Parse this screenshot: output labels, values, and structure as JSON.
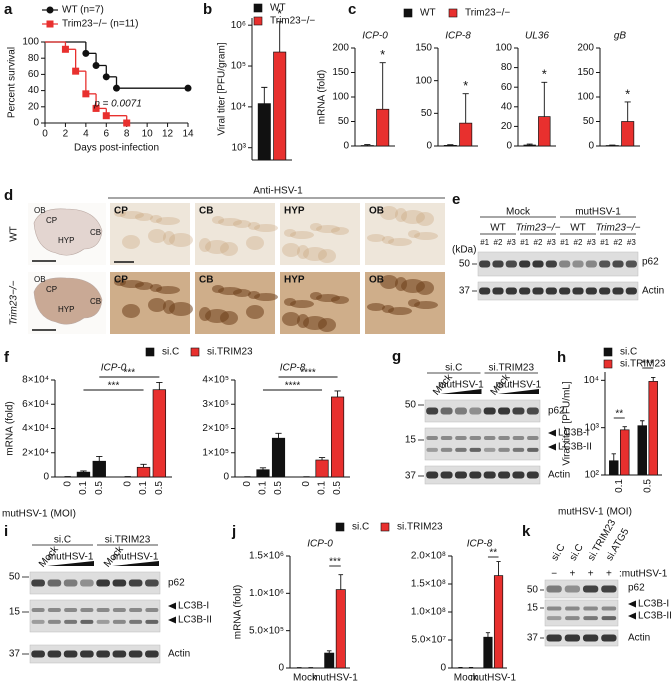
{
  "chart_data": [
    {
      "panel": "a",
      "type": "line",
      "ylabel": "Percent survival",
      "xlabel": "Days post-infection",
      "annotation": "p = 0.0071",
      "xlim": [
        0,
        14
      ],
      "xticks": [
        0,
        2,
        4,
        6,
        8,
        10,
        12,
        14
      ],
      "ylim": [
        0,
        100
      ],
      "yticks": [
        0,
        20,
        40,
        60,
        80,
        100
      ],
      "series": [
        {
          "name": "WT (n=7)",
          "color": "#111111",
          "marker": "circle",
          "x": [
            0,
            4,
            5,
            6,
            7,
            14
          ],
          "values": [
            100,
            86,
            71,
            57,
            43,
            43
          ]
        },
        {
          "name": "Trim23−/− (n=11)",
          "color": "#e8302e",
          "marker": "square",
          "x": [
            0,
            2,
            3,
            4,
            5,
            6,
            8
          ],
          "values": [
            100,
            91,
            64,
            36,
            18,
            9,
            0
          ]
        }
      ]
    },
    {
      "panel": "b",
      "type": "bar",
      "ylabel": "Viral titer [PFU/gram]",
      "log": true,
      "ylim": [
        500,
        1500000
      ],
      "yticks": [
        {
          "value": 1000,
          "label": "10³"
        },
        {
          "value": 10000,
          "label": "10⁴"
        },
        {
          "value": 100000,
          "label": "10⁵"
        },
        {
          "value": 1000000,
          "label": "10⁶"
        }
      ],
      "series": [
        {
          "name": "WT",
          "color": "#111111",
          "values": [
            12000
          ],
          "errors": [
            18000
          ]
        },
        {
          "name": "Trim23−/−",
          "color": "#e8302e",
          "values": [
            220000
          ],
          "errors": [
            1000000
          ]
        }
      ],
      "annotations": [
        "*"
      ]
    },
    {
      "panel": "c",
      "type": "bar",
      "title": "ICP-0",
      "ylabel": "mRNA (fold)",
      "ylim": [
        0,
        200
      ],
      "yticks": [
        0,
        50,
        100,
        150,
        200
      ],
      "series": [
        {
          "name": "WT",
          "color": "#111111",
          "values": [
            1
          ],
          "errors": [
            2
          ]
        },
        {
          "name": "Trim23−/−",
          "color": "#e8302e",
          "values": [
            75
          ],
          "errors": [
            95
          ]
        }
      ],
      "annotations": [
        "*"
      ]
    },
    {
      "type": "bar",
      "title": "ICP-8",
      "ylim": [
        0,
        150
      ],
      "yticks": [
        0,
        50,
        100,
        150
      ],
      "series": [
        {
          "color": "#111111",
          "values": [
            1
          ],
          "errors": [
            1
          ]
        },
        {
          "color": "#e8302e",
          "values": [
            35
          ],
          "errors": [
            45
          ]
        }
      ],
      "annotations": [
        "*"
      ]
    },
    {
      "type": "bar",
      "title": "UL36",
      "ylim": [
        0,
        100
      ],
      "yticks": [
        0,
        20,
        40,
        60,
        80,
        100
      ],
      "series": [
        {
          "color": "#111111",
          "values": [
            1
          ],
          "errors": [
            1
          ]
        },
        {
          "color": "#e8302e",
          "values": [
            30
          ],
          "errors": [
            35
          ]
        }
      ],
      "annotations": [
        "*"
      ]
    },
    {
      "type": "bar",
      "title": "gB",
      "ylim": [
        0,
        200
      ],
      "yticks": [
        0,
        50,
        100,
        150,
        200
      ],
      "series": [
        {
          "color": "#111111",
          "values": [
            1
          ],
          "errors": [
            1
          ]
        },
        {
          "color": "#e8302e",
          "values": [
            50
          ],
          "errors": [
            40
          ]
        }
      ],
      "annotations": [
        "*"
      ]
    },
    {
      "panel": "f",
      "type": "bar",
      "title": "ICP-0",
      "ylabel": "mRNA (fold)",
      "xlabel": "mutHSV-1 (MOI)",
      "categories": [
        "0",
        "0.1",
        "0.5"
      ],
      "ylim": [
        0,
        80000
      ],
      "yticks": [
        0,
        {
          "value": 20000,
          "label": "2×10⁴"
        },
        {
          "value": 40000,
          "label": "4×10⁴"
        },
        {
          "value": 60000,
          "label": "6×10⁴"
        },
        {
          "value": 80000,
          "label": "8×10⁴"
        }
      ],
      "series": [
        {
          "name": "si.C",
          "color": "#111111",
          "values": [
            0,
            4000,
            13000
          ],
          "errors": [
            300,
            1000,
            4000
          ]
        },
        {
          "name": "si.TRIM23",
          "color": "#e8302e",
          "values": [
            0,
            8000,
            72000
          ],
          "errors": [
            300,
            2500,
            6000
          ]
        }
      ],
      "annotations": [
        "***",
        "***"
      ]
    },
    {
      "type": "bar",
      "title": "ICP-8",
      "categories": [
        "0",
        "0.1",
        "0.5"
      ],
      "ylim": [
        0,
        400000
      ],
      "yticks": [
        0,
        {
          "value": 100000,
          "label": "1×10⁵"
        },
        {
          "value": 200000,
          "label": "2×10⁵"
        },
        {
          "value": 300000,
          "label": "3×10⁵"
        },
        {
          "value": 400000,
          "label": "4×10⁵"
        }
      ],
      "series": [
        {
          "color": "#111111",
          "values": [
            0,
            30000,
            160000
          ],
          "errors": [
            1000,
            8000,
            20000
          ]
        },
        {
          "color": "#e8302e",
          "values": [
            0,
            70000,
            330000
          ],
          "errors": [
            1000,
            10000,
            25000
          ]
        }
      ],
      "annotations": [
        "****",
        "****"
      ]
    },
    {
      "panel": "h",
      "type": "bar",
      "ylabel": "Viral titer [PFU/mL]",
      "xlabel": "mutHSV-1 (MOI)",
      "log": true,
      "categories": [
        "0.1",
        "0.5"
      ],
      "ylim": [
        100,
        15000
      ],
      "yticks": [
        {
          "value": 100,
          "label": "10²"
        },
        {
          "value": 1000,
          "label": "10³"
        },
        {
          "value": 10000,
          "label": "10⁴"
        }
      ],
      "series": [
        {
          "name": "si.C",
          "color": "#111111",
          "values": [
            200,
            1100
          ],
          "errors": [
            80,
            300
          ]
        },
        {
          "name": "si.TRIM23",
          "color": "#e8302e",
          "values": [
            900,
            9500
          ],
          "errors": [
            150,
            2000
          ]
        }
      ],
      "annotations": [
        "**",
        "***"
      ]
    },
    {
      "panel": "j",
      "type": "bar",
      "title": "ICP-0",
      "ylabel": "mRNA (fold)",
      "categories": [
        "Mock",
        "mutHSV-1"
      ],
      "ylim": [
        0,
        1500000
      ],
      "yticks": [
        0,
        {
          "value": 500000,
          "label": "5.0×10⁵"
        },
        {
          "value": 1000000,
          "label": "1.0×10⁶"
        },
        {
          "value": 1500000,
          "label": "1.5×10⁶"
        }
      ],
      "series": [
        {
          "name": "si.C",
          "color": "#111111",
          "values": [
            0,
            200000
          ],
          "errors": [
            5000,
            30000
          ]
        },
        {
          "name": "si.TRIM23",
          "color": "#e8302e",
          "values": [
            0,
            1050000
          ],
          "errors": [
            5000,
            200000
          ]
        }
      ],
      "annotations": [
        "***"
      ]
    },
    {
      "type": "bar",
      "title": "ICP-8",
      "categories": [
        "Mock",
        "mutHSV-1"
      ],
      "ylim": [
        0,
        200000000
      ],
      "yticks": [
        0,
        {
          "value": 50000000,
          "label": "5.0×10⁷"
        },
        {
          "value": 100000000,
          "label": "1.0×10⁸"
        },
        {
          "value": 150000000,
          "label": "1.5×10⁸"
        },
        {
          "value": 200000000,
          "label": "2.0×10⁸"
        }
      ],
      "series": [
        {
          "color": "#111111",
          "values": [
            0,
            55000000
          ],
          "errors": [
            1000000,
            8000000
          ]
        },
        {
          "color": "#e8302e",
          "values": [
            0,
            165000000
          ],
          "errors": [
            1000000,
            25000000
          ]
        }
      ],
      "annotations": [
        "**"
      ]
    }
  ],
  "histology": {
    "panel": "d",
    "title": "Anti-HSV-1",
    "rows": [
      "WT",
      "Trim23−/−"
    ],
    "regions": [
      "CP",
      "CB",
      "HYP",
      "OB"
    ],
    "overview_labels": [
      "OB",
      "CP",
      "HYP",
      "CB"
    ]
  },
  "blots": [
    {
      "panel": "e",
      "groups": [
        "Mock",
        "mutHSV-1"
      ],
      "subgroups": [
        "WT",
        "Trim23−/−",
        "WT",
        "Trim23−/−"
      ],
      "lanes": [
        "#1",
        "#2",
        "#3",
        "#1",
        "#2",
        "#3",
        "#1",
        "#2",
        "#3",
        "#1",
        "#2",
        "#3"
      ],
      "unit": "(kDa)",
      "markers": [
        50,
        37
      ],
      "bands": [
        "p62",
        "Actin"
      ]
    },
    {
      "panel": "g",
      "groups": [
        "si.C",
        "si.TRIM23"
      ],
      "lanes": [
        "Mock",
        "mutHSV-1",
        "Mock",
        "mutHSV-1"
      ],
      "markers": [
        50,
        15,
        37
      ],
      "bands": [
        "p62",
        "LC3B-I",
        "LC3B-II",
        "Actin"
      ]
    },
    {
      "panel": "i",
      "groups": [
        "si.C",
        "si.TRIM23"
      ],
      "lanes": [
        "Mock",
        "mutHSV-1",
        "Mock",
        "mutHSV-1"
      ],
      "markers": [
        50,
        15,
        37
      ],
      "bands": [
        "p62",
        "LC3B-I",
        "LC3B-II",
        "Actin"
      ]
    },
    {
      "panel": "k",
      "lanes": [
        "si.C",
        "si.C",
        "si.TRIM23",
        "si.ATG5"
      ],
      "treatment": [
        "−",
        "+",
        "+",
        "+"
      ],
      "treatment_label": ":mutHSV-1",
      "markers": [
        50,
        15,
        37
      ],
      "bands": [
        "p62",
        "LC3B-I",
        "LC3B-II",
        "Actin"
      ]
    }
  ]
}
